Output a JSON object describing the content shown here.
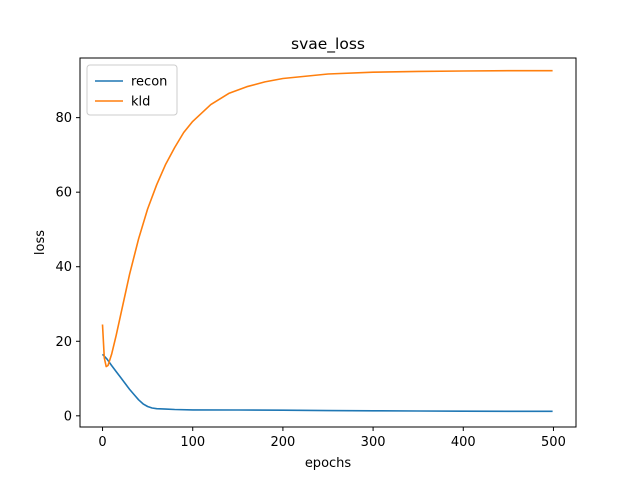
{
  "chart_data": {
    "type": "line",
    "title": "svae_loss",
    "xlabel": "epochs",
    "ylabel": "loss",
    "xlim": [
      -25,
      525
    ],
    "ylim": [
      -3,
      96
    ],
    "xticks": [
      0,
      100,
      200,
      300,
      400,
      500
    ],
    "yticks": [
      0,
      20,
      40,
      60,
      80
    ],
    "grid": false,
    "legend_position": "upper-left",
    "series": [
      {
        "name": "recon",
        "color": "#1f77b4",
        "x": [
          0,
          5,
          10,
          15,
          20,
          25,
          30,
          35,
          40,
          45,
          50,
          55,
          60,
          70,
          80,
          100,
          150,
          200,
          250,
          300,
          350,
          400,
          450,
          499
        ],
        "y": [
          16.5,
          15.2,
          13.5,
          11.9,
          10.3,
          8.7,
          7.1,
          5.7,
          4.3,
          3.2,
          2.5,
          2.1,
          1.9,
          1.8,
          1.7,
          1.6,
          1.55,
          1.5,
          1.4,
          1.35,
          1.3,
          1.25,
          1.2,
          1.2
        ]
      },
      {
        "name": "kld",
        "color": "#ff7f0e",
        "x": [
          0,
          2,
          4,
          6,
          10,
          15,
          20,
          30,
          40,
          50,
          60,
          70,
          80,
          90,
          100,
          120,
          140,
          160,
          180,
          200,
          250,
          300,
          350,
          400,
          450,
          499
        ],
        "y": [
          24.5,
          15.5,
          13.2,
          13.5,
          16.5,
          21.5,
          27.0,
          38.0,
          47.5,
          55.5,
          62.0,
          67.5,
          72.0,
          76.0,
          79.0,
          83.5,
          86.5,
          88.3,
          89.6,
          90.5,
          91.7,
          92.2,
          92.4,
          92.5,
          92.6,
          92.6
        ]
      }
    ]
  }
}
